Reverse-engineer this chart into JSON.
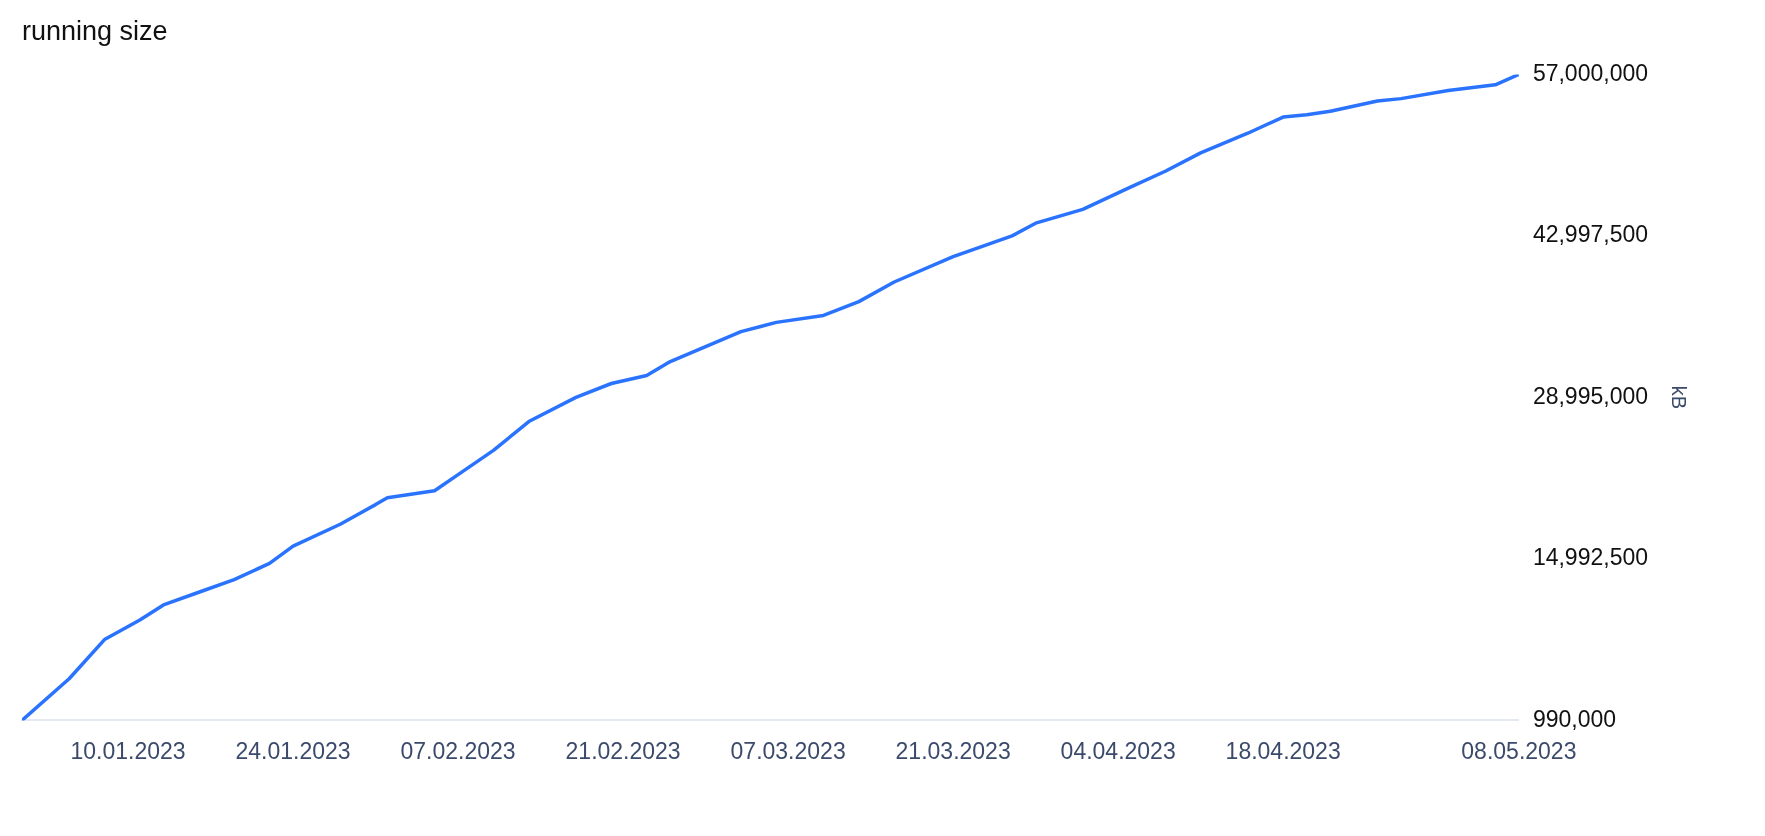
{
  "chart_data": {
    "type": "line",
    "title": "running size",
    "y2label": "kB",
    "x": [
      "2023-01-01",
      "2023-01-05",
      "2023-01-08",
      "2023-01-11",
      "2023-01-13",
      "2023-01-16",
      "2023-01-19",
      "2023-01-22",
      "2023-01-24",
      "2023-01-28",
      "2023-01-31",
      "2023-02-01",
      "2023-02-03",
      "2023-02-05",
      "2023-02-07",
      "2023-02-10",
      "2023-02-13",
      "2023-02-17",
      "2023-02-20",
      "2023-02-23",
      "2023-02-25",
      "2023-02-28",
      "2023-03-03",
      "2023-03-06",
      "2023-03-10",
      "2023-03-13",
      "2023-03-16",
      "2023-03-21",
      "2023-03-26",
      "2023-03-28",
      "2023-04-01",
      "2023-04-05",
      "2023-04-08",
      "2023-04-11",
      "2023-04-15",
      "2023-04-18",
      "2023-04-20",
      "2023-04-22",
      "2023-04-26",
      "2023-04-28",
      "2023-05-02",
      "2023-05-06",
      "2023-05-08"
    ],
    "series": [
      {
        "color": "#2a73ff",
        "axis": "y2",
        "values": [
          990000,
          4600000,
          8000000,
          9700000,
          11000000,
          12100000,
          13200000,
          14600000,
          16100000,
          18000000,
          19700000,
          20300000,
          20600000,
          20900000,
          22300000,
          24400000,
          26900000,
          29000000,
          30200000,
          30900000,
          32100000,
          33400000,
          34700000,
          35500000,
          36100000,
          37300000,
          39000000,
          41200000,
          43000000,
          44100000,
          45300000,
          47200000,
          48600000,
          50200000,
          51900000,
          53300000,
          53500000,
          53800000,
          54700000,
          54900000,
          55600000,
          56100000,
          57000000
        ]
      }
    ],
    "xticks": [
      {
        "value": "2023-01-10",
        "label": "10.01.2023"
      },
      {
        "value": "2023-01-24",
        "label": "24.01.2023"
      },
      {
        "value": "2023-02-07",
        "label": "07.02.2023"
      },
      {
        "value": "2023-02-21",
        "label": "21.02.2023"
      },
      {
        "value": "2023-03-07",
        "label": "07.03.2023"
      },
      {
        "value": "2023-03-21",
        "label": "21.03.2023"
      },
      {
        "value": "2023-04-04",
        "label": "04.04.2023"
      },
      {
        "value": "2023-04-18",
        "label": "18.04.2023"
      },
      {
        "value": "2023-05-08",
        "label": "08.05.2023"
      }
    ],
    "xlim": [
      "2023-01-01",
      "2023-05-08"
    ],
    "y2lim": [
      990000,
      57000000
    ],
    "y2ticks": [
      {
        "value": 990000,
        "label": "990,000"
      },
      {
        "value": 14992500,
        "label": "14,992,500"
      },
      {
        "value": 28995000,
        "label": "28,995,000"
      },
      {
        "value": 42997500,
        "label": "42,997,500"
      },
      {
        "value": 57000000,
        "label": "57,000,000"
      }
    ],
    "grid": false,
    "legend": false,
    "marker": "none",
    "line_style": "solid"
  }
}
